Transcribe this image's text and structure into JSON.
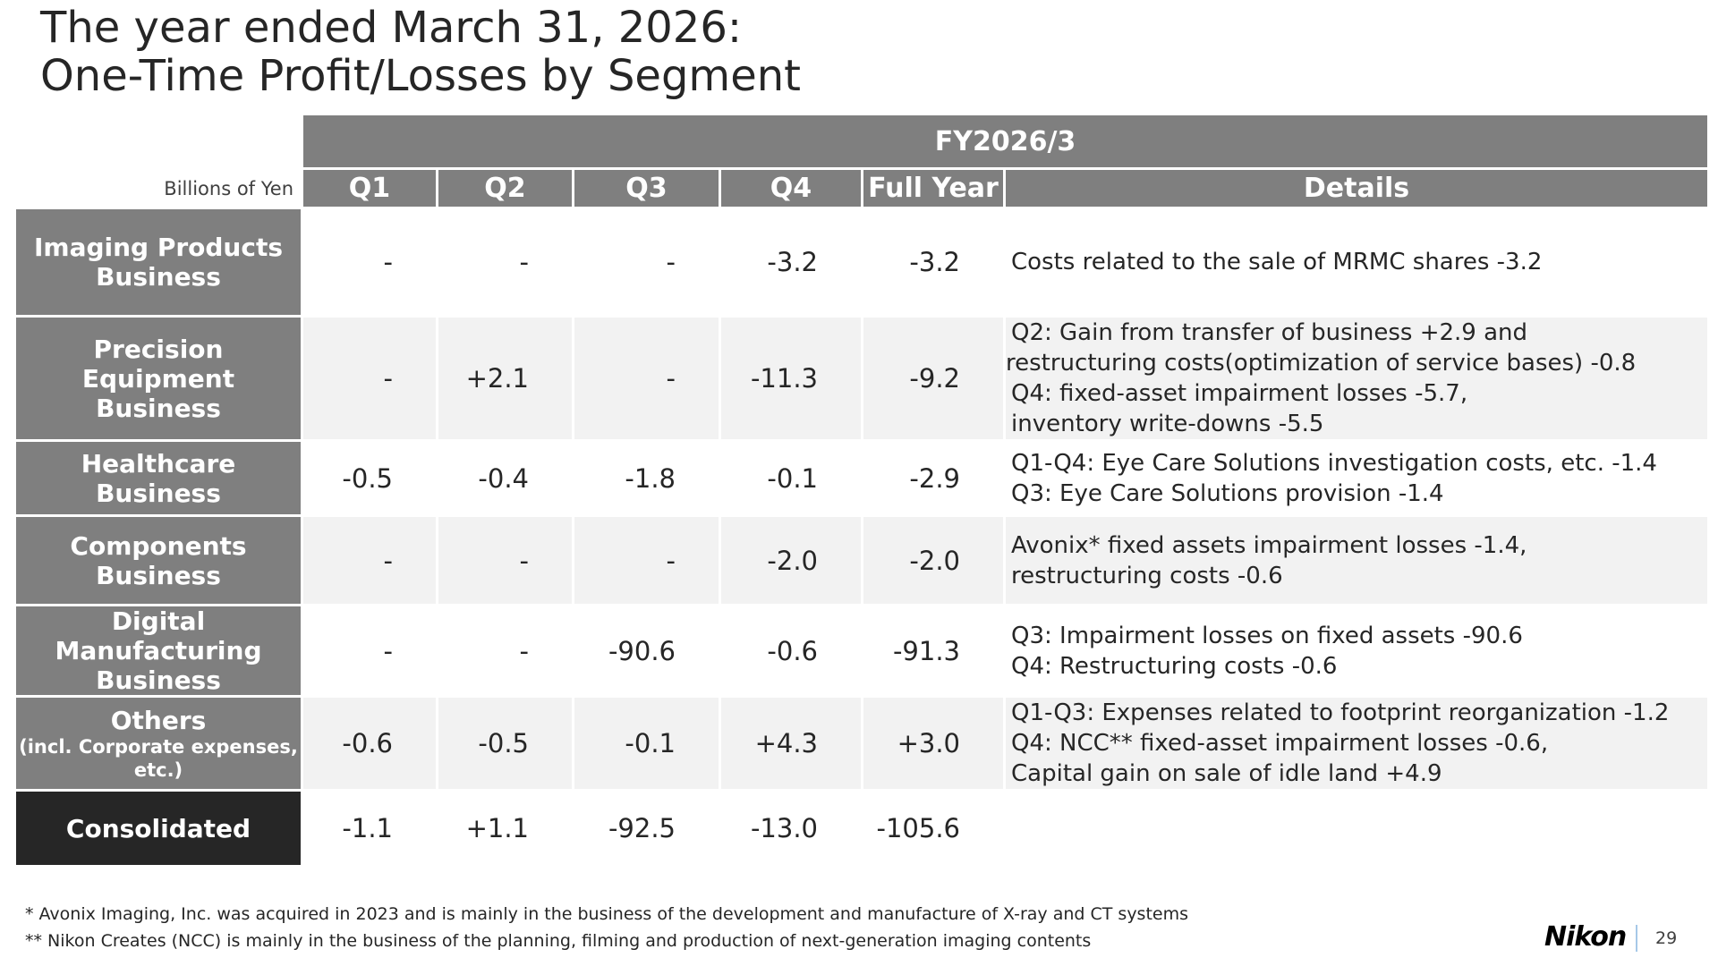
{
  "title": {
    "line1": "The year ended March 31, 2026:",
    "line2": "One-Time Profit/Losses by Segment"
  },
  "table": {
    "fiscal_header": "FY2026/3",
    "unit": "Billions of Yen",
    "columns": [
      "Q1",
      "Q2",
      "Q3",
      "Q4",
      "Full Year",
      "Details"
    ],
    "rows": [
      {
        "label": "Imaging Products Business",
        "sublabel": "",
        "values": [
          "-",
          "-",
          "-",
          "-3.2",
          "-3.2"
        ],
        "details": [
          "Costs related to the sale of MRMC shares -3.2"
        ]
      },
      {
        "label": "Precision Equipment Business",
        "sublabel": "",
        "values": [
          "-",
          "+2.1",
          "-",
          "-11.3",
          "-9.2"
        ],
        "details": [
          "Q2: Gain from transfer of business +2.9 and",
          "restructuring costs(optimization of service bases) -0.8",
          "Q4: fixed-asset impairment losses -5.7,",
          "inventory write-downs -5.5"
        ]
      },
      {
        "label": "Healthcare Business",
        "sublabel": "",
        "values": [
          "-0.5",
          "-0.4",
          "-1.8",
          "-0.1",
          "-2.9"
        ],
        "details": [
          "Q1-Q4: Eye Care Solutions investigation costs, etc. -1.4",
          "Q3: Eye Care Solutions provision -1.4"
        ]
      },
      {
        "label": "Components Business",
        "sublabel": "",
        "values": [
          "-",
          "-",
          "-",
          "-2.0",
          "-2.0"
        ],
        "details": [
          "Avonix* fixed assets impairment losses -1.4,",
          "restructuring costs -0.6"
        ]
      },
      {
        "label": "Digital Manufacturing Business",
        "sublabel": "",
        "values": [
          "-",
          "-",
          "-90.6",
          "-0.6",
          "-91.3"
        ],
        "details": [
          "Q3: Impairment losses on fixed assets -90.6",
          "Q4: Restructuring costs -0.6"
        ]
      },
      {
        "label": "Others",
        "sublabel": "(incl. Corporate  expenses, etc.)",
        "values": [
          "-0.6",
          "-0.5",
          "-0.1",
          "+4.3",
          "+3.0"
        ],
        "details": [
          "Q1-Q3: Expenses related to footprint reorganization -1.2",
          "Q4: NCC** fixed-asset impairment losses -0.6,",
          "Capital gain on sale of idle land +4.9"
        ]
      },
      {
        "label": "Consolidated",
        "sublabel": "",
        "values": [
          "-1.1",
          "+1.1",
          "-92.5",
          "-13.0",
          "-105.6"
        ],
        "details": []
      }
    ]
  },
  "footnotes": [
    "*  Avonix Imaging, Inc. was acquired in 2023 and is mainly in the business of the development and manufacture of X-ray and CT systems",
    "** Nikon Creates (NCC) is mainly in the business of the planning, filming and production of next-generation imaging contents"
  ],
  "logo": "Nikon",
  "page_number": "29"
}
